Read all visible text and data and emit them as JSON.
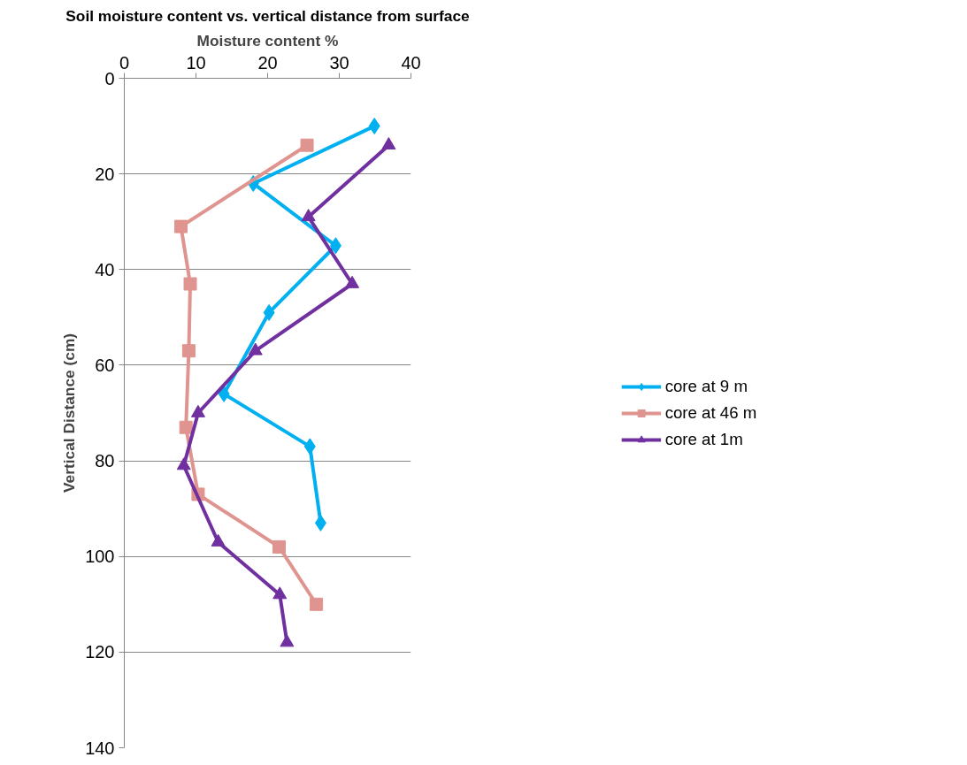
{
  "chart_data": {
    "type": "line",
    "title": "Soil moisture content vs. vertical distance from surface",
    "xlabel": "Moisture content %",
    "ylabel": "Vertical Distance (cm)",
    "xlim": [
      0,
      40
    ],
    "xticks": [
      0,
      10,
      20,
      30,
      40
    ],
    "ylim": [
      140,
      0
    ],
    "yticks": [
      0,
      20,
      40,
      60,
      80,
      100,
      120,
      140
    ],
    "grid": "y",
    "legend": "right",
    "series": [
      {
        "name": "core at 9 m",
        "color": "#00b0f0",
        "marker": "diamond",
        "x": [
          34.9,
          18.0,
          29.5,
          20.2,
          13.9,
          25.9,
          27.4
        ],
        "values": [
          10,
          22,
          35,
          49,
          66,
          77,
          93
        ]
      },
      {
        "name": "core at 46 m",
        "color": "#e0948f",
        "marker": "square",
        "x": [
          25.5,
          7.9,
          9.2,
          9.0,
          8.6,
          10.3,
          21.6,
          26.8
        ],
        "values": [
          14,
          31,
          43,
          57,
          73,
          87,
          98,
          110
        ]
      },
      {
        "name": "core at 1m",
        "color": "#7030a0",
        "marker": "triangle",
        "x": [
          36.9,
          25.7,
          31.8,
          18.3,
          10.3,
          8.3,
          13.1,
          21.7,
          22.7
        ],
        "values": [
          14,
          29,
          43,
          57,
          70,
          81,
          97,
          108,
          118
        ]
      }
    ]
  }
}
